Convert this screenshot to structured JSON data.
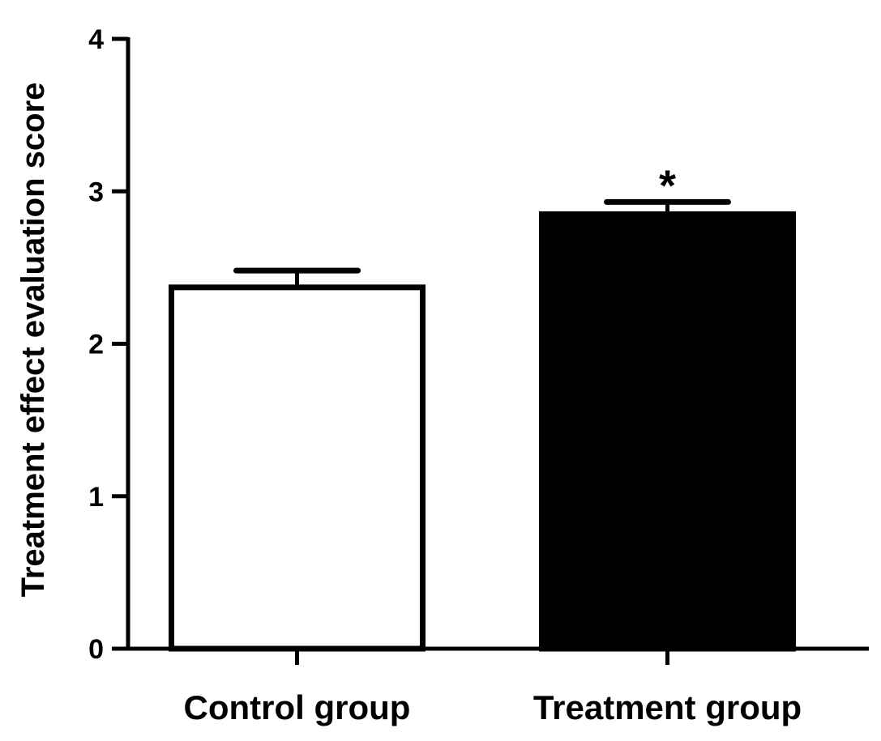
{
  "chart_data": {
    "type": "bar",
    "title": "",
    "xlabel": "",
    "ylabel": "Treatment effect evaluation score",
    "ylim": [
      0,
      4
    ],
    "yticks": [
      "0",
      "1",
      "2",
      "3",
      "4"
    ],
    "categories": [
      "Control group",
      "Treatment group"
    ],
    "values": [
      2.37,
      2.85
    ],
    "error_upper": [
      0.11,
      0.08
    ],
    "bar_fill": [
      "#ffffff",
      "#000000"
    ],
    "bar_stroke": "#000000",
    "annotations": [
      {
        "category": "Treatment group",
        "text": "*"
      }
    ],
    "grid": false,
    "legend": "none"
  }
}
